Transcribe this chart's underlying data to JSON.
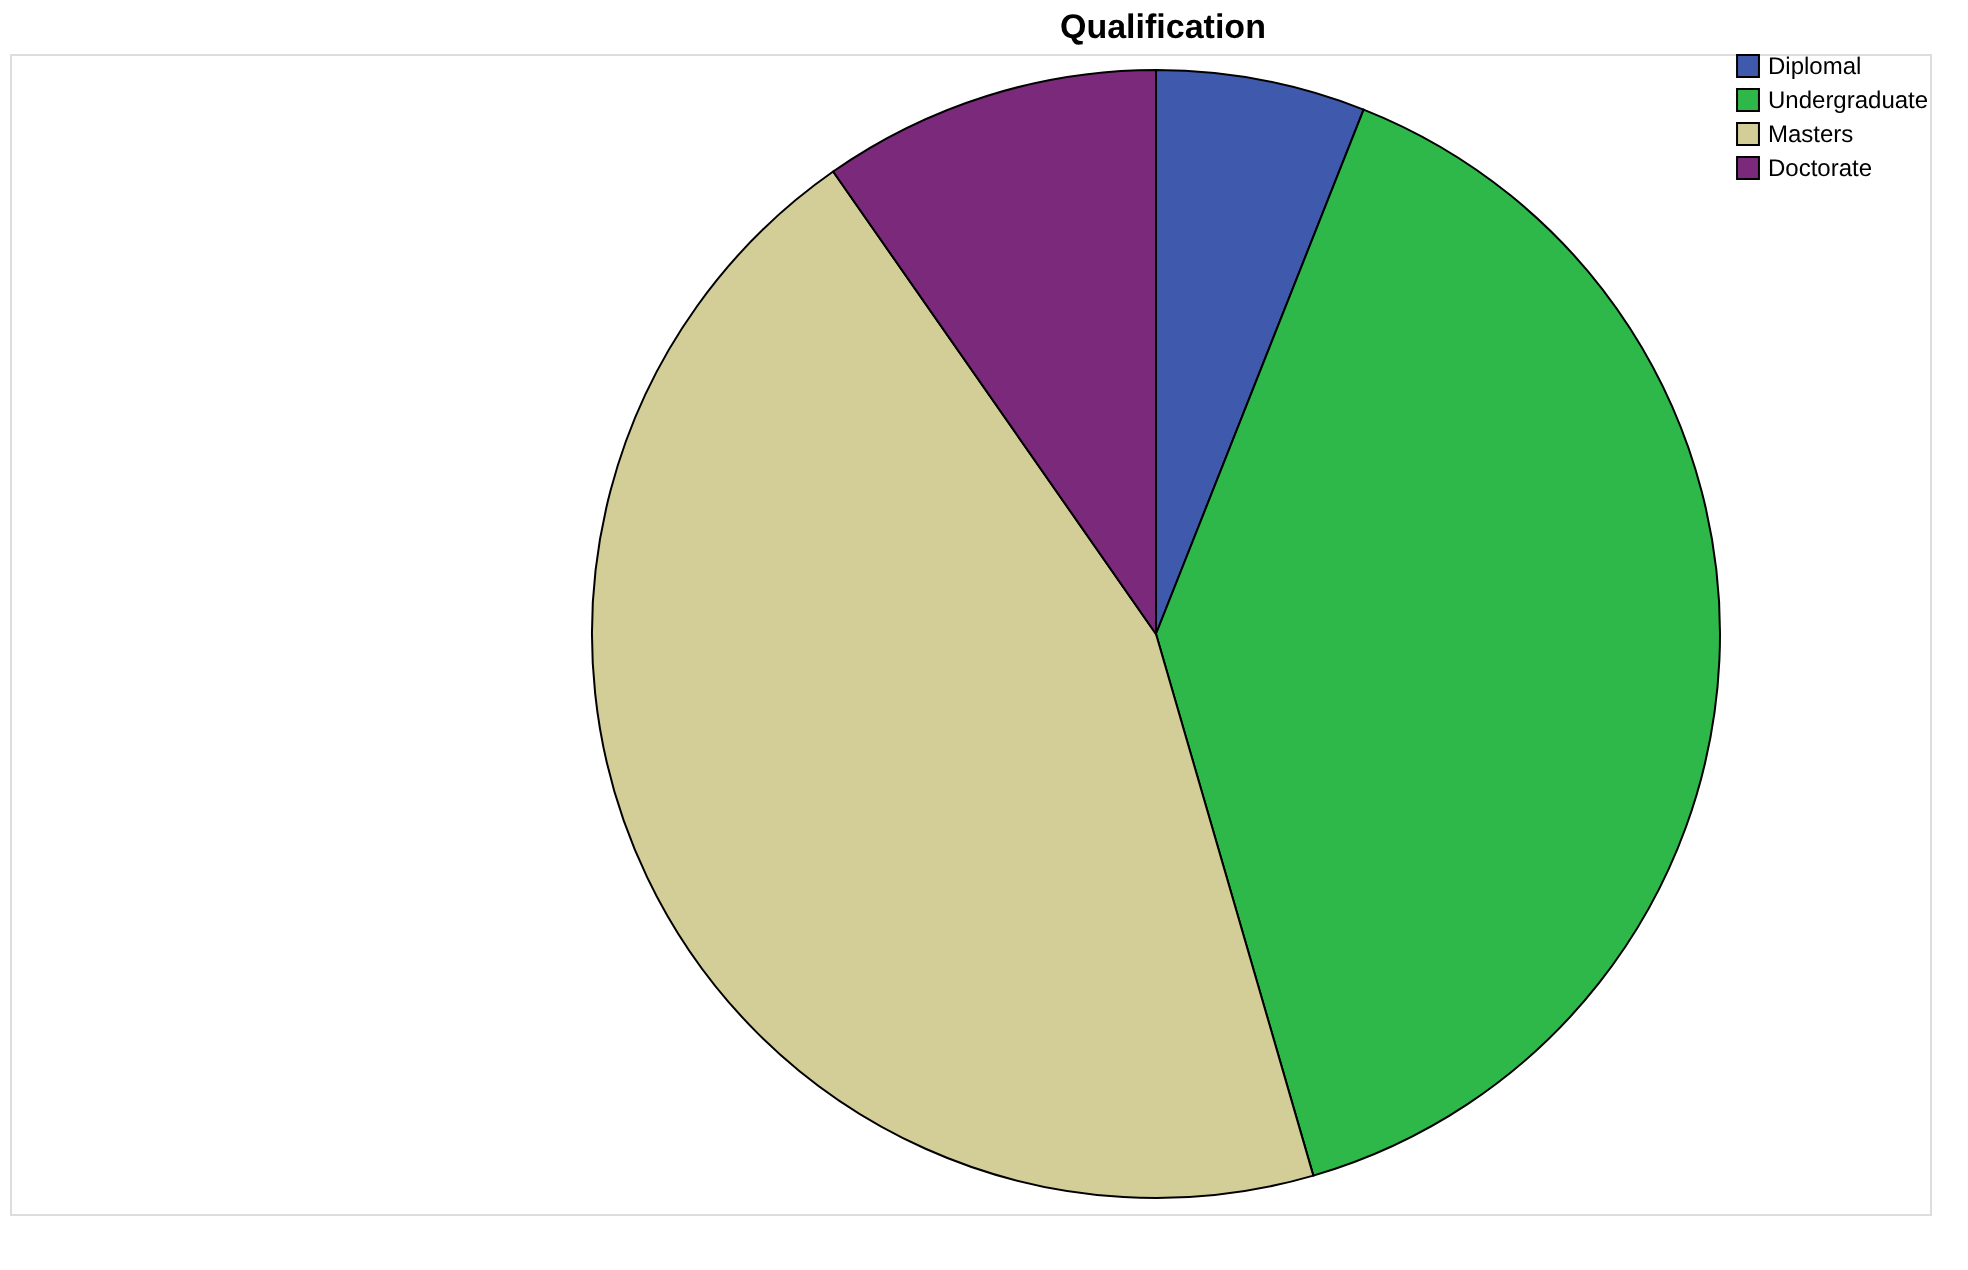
{
  "chart_data": {
    "type": "pie",
    "title": "Qualification",
    "categories": [
      "Diplomal",
      "Undergraduate",
      "Masters",
      "Doctorate"
    ],
    "values": [
      6.0,
      39.5,
      44.8,
      9.7
    ],
    "colors": [
      "#3f5aad",
      "#2fb84a",
      "#d3ce98",
      "#7b2a7b"
    ],
    "legend": "top right"
  }
}
